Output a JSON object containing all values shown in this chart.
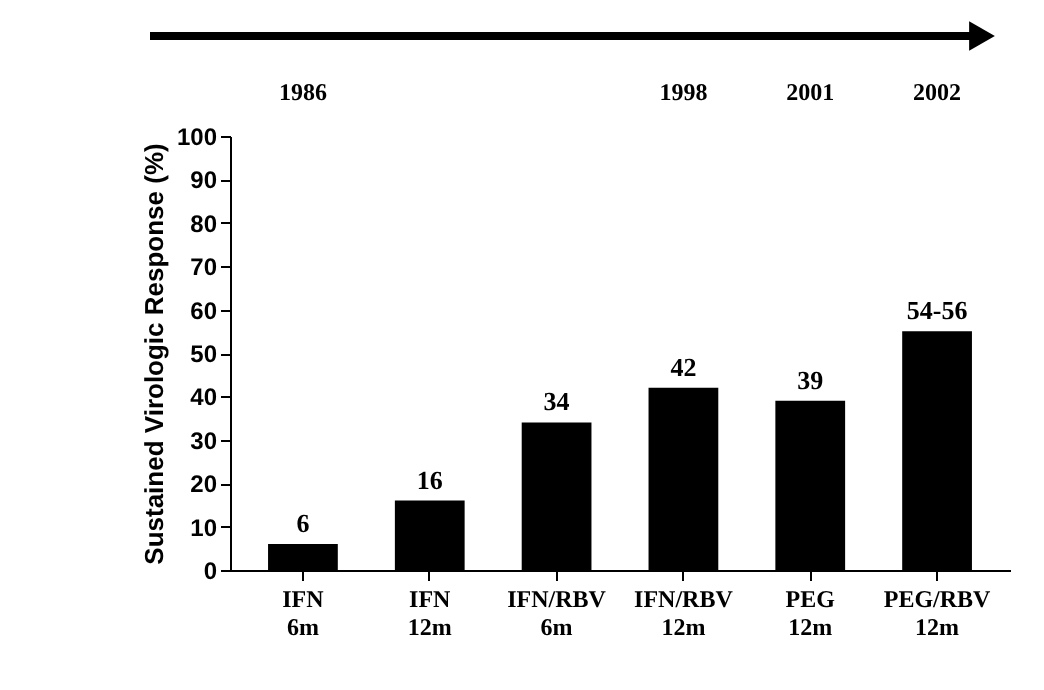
{
  "chart_data": {
    "type": "bar",
    "ylabel": "Sustained Virologic Response (%)",
    "categories": [
      "IFN 6m",
      "IFN 12m",
      "IFN/RBV 6m",
      "IFN/RBV 12m",
      "PEG 12m",
      "PEG/RBV 12m"
    ],
    "values": [
      6,
      16,
      34,
      42,
      39,
      55
    ],
    "value_labels": [
      "6",
      "16",
      "34",
      "42",
      "39",
      "54-56"
    ],
    "color": "#000000",
    "ylim": [
      0,
      100
    ],
    "yticks": [
      0,
      10,
      20,
      30,
      40,
      50,
      60,
      70,
      80,
      90,
      100
    ],
    "grid": false,
    "annotations": [
      "1986",
      "1998",
      "2001",
      "2002"
    ]
  }
}
